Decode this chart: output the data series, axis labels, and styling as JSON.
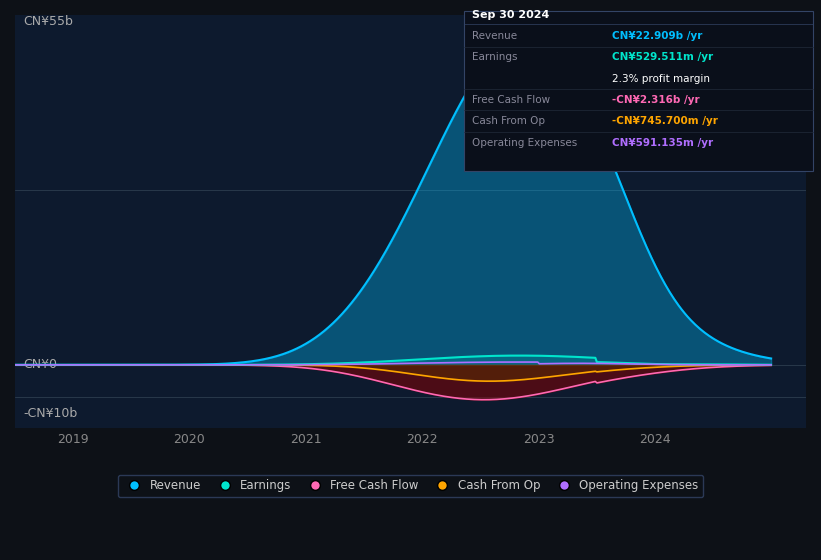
{
  "background_color": "#0d1117",
  "plot_bg_color": "#0d1a2e",
  "y_label_top": "CN¥55b",
  "y_label_zero": "CN¥0",
  "y_label_neg": "-CN¥10b",
  "x_ticks": [
    2019,
    2020,
    2021,
    2022,
    2023,
    2024
  ],
  "y_max": 55000000000.0,
  "y_min": -10000000000.0,
  "revenue_color": "#00bfff",
  "earnings_color": "#00e5cc",
  "fcf_color": "#ff69b4",
  "cashfromop_color": "#ffa500",
  "opex_color": "#b06eff",
  "legend_labels": [
    "Revenue",
    "Earnings",
    "Free Cash Flow",
    "Cash From Op",
    "Operating Expenses"
  ],
  "tooltip": {
    "date": "Sep 30 2024",
    "revenue": "CN¥22.909b",
    "earnings": "CN¥529.511m",
    "profit_margin": "2.3%",
    "fcf": "-CN¥2.316b",
    "cashfromop": "-CN¥745.700m",
    "opex": "CN¥591.135m"
  }
}
